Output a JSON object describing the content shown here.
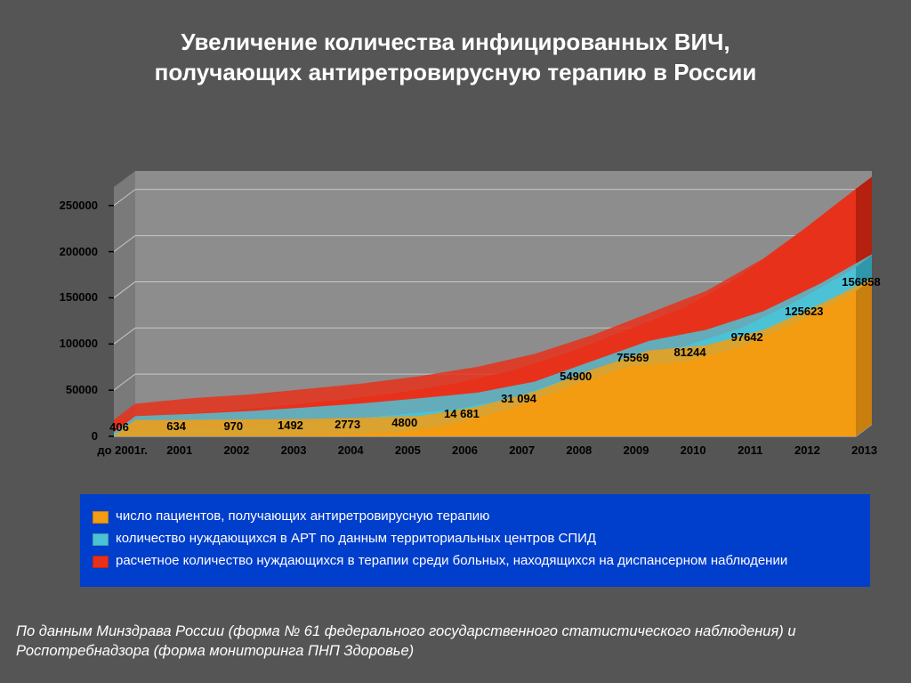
{
  "title_line1": "Увеличение количества инфицированных ВИЧ,",
  "title_line2": "получающих антиретровирусную терапию в России",
  "source_text": "По данным Минздрава России (форма № 61 федерального государственного статистического наблюдения) и Роспотребнадзора (форма мониторинга ПНП Здоровье)",
  "chart": {
    "type": "area-3d",
    "background_color": "#555555",
    "floor_color": "#9a9a9a",
    "floor_edge_color": "#cccccc",
    "wall_back_color": "#8d8d8d",
    "wall_side_color": "#7a7a7a",
    "grid_color": "#c8c8c8",
    "axis_tick_color": "#000000",
    "label_color": "#000000",
    "label_fontsize": 13,
    "categories": [
      "до 2001г.",
      "2001",
      "2002",
      "2003",
      "2004",
      "2005",
      "2006",
      "2007",
      "2008",
      "2009",
      "2010",
      "2011",
      "2012",
      "2013"
    ],
    "y_ticks": [
      0,
      50000,
      100000,
      150000,
      200000,
      250000
    ],
    "ylim": [
      0,
      270000
    ],
    "series": [
      {
        "key": "patients_on_art",
        "color": "#f39c12",
        "side_color": "#c97f0e",
        "values": [
          406,
          634,
          970,
          1492,
          2773,
          4800,
          14681,
          31094,
          54900,
          75569,
          81244,
          97642,
          125623,
          156858
        ],
        "show_data_labels": true
      },
      {
        "key": "needing_art_centers",
        "color": "#4cc2d6",
        "side_color": "#2e98aa",
        "values": [
          4500,
          7000,
          10000,
          14000,
          18500,
          24000,
          30000,
          42000,
          64000,
          86000,
          98000,
          118000,
          148000,
          183000
        ],
        "show_data_labels": false
      },
      {
        "key": "needing_therapy_dispensary",
        "color": "#e8311b",
        "side_color": "#b5200f",
        "values": [
          18000,
          24000,
          28000,
          34000,
          40000,
          48000,
          58000,
          72000,
          92000,
          116000,
          140000,
          175000,
          220000,
          268000
        ],
        "show_data_labels": false
      }
    ],
    "data_label_format": {
      "406": "406",
      "634": "634",
      "970": "970",
      "1492": "1492",
      "2773": "2773",
      "4800": "4800",
      "14681": "14 681",
      "31094": "31 094",
      "54900": "54900",
      "75569": "75569",
      "81244": "81244",
      "97642": "97642",
      "125623": "125623",
      "156858": "156858"
    }
  },
  "legend": {
    "background_color": "#003ecc",
    "text_color": "#ffffff",
    "fontsize": 15,
    "items": [
      {
        "color": "#f39c12",
        "label": "число пациентов, получающих антиретровирусную терапию"
      },
      {
        "color": "#4cc2d6",
        "label": "количество нуждающихся в АРТ по данным территориальных центров СПИД"
      },
      {
        "color": "#e8311b",
        "label": "расчетное количество нуждающихся в терапии среди больных, находящихся на диспансерном наблюдении"
      }
    ]
  }
}
